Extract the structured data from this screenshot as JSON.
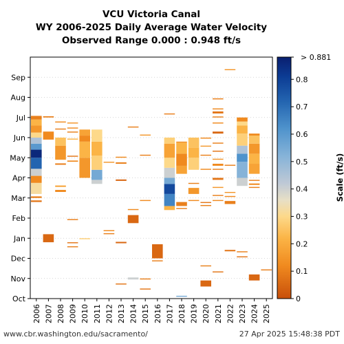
{
  "chart_data": {
    "type": "heatmap",
    "title_lines": [
      "VCU Victoria Canal",
      "WY 2006-2025 Daily Average Water Velocity",
      "Observed Range 0.000 : 0.948 ft/s"
    ],
    "x_categories": [
      "2006",
      "2007",
      "2008",
      "2009",
      "2010",
      "2011",
      "2012",
      "2013",
      "2014",
      "2015",
      "2016",
      "2017",
      "2018",
      "2019",
      "2020",
      "2021",
      "2022",
      "2023",
      "2024",
      "2025"
    ],
    "y_month_labels": [
      "Oct",
      "Nov",
      "Dec",
      "Jan",
      "Feb",
      "Mar",
      "Apr",
      "May",
      "Jun",
      "Jul",
      "Aug",
      "Sep"
    ],
    "y_range_months": [
      0,
      12
    ],
    "grid": true,
    "colorbar": {
      "label": "Scale (ft/s)",
      "min": 0,
      "max": 0.881,
      "top_label": "> 0.881",
      "ticks": [
        0,
        0.1,
        0.2,
        0.3,
        0.4,
        0.5,
        0.6,
        0.7,
        0.8
      ],
      "tick_labels": [
        "0",
        "0.1",
        "0.2",
        "0.3",
        "0.4",
        "0.5",
        "0.6",
        "0.7",
        "0.8"
      ],
      "stops": [
        {
          "v": 0.0,
          "c": "#c84f0a"
        },
        {
          "v": 0.12,
          "c": "#f08a1f"
        },
        {
          "v": 0.22,
          "c": "#fbb446"
        },
        {
          "v": 0.3,
          "c": "#fdd98a"
        },
        {
          "v": 0.36,
          "c": "#e7dfc6"
        },
        {
          "v": 0.42,
          "c": "#bfc9d6"
        },
        {
          "v": 0.52,
          "c": "#86b3d8"
        },
        {
          "v": 0.62,
          "c": "#4f93cc"
        },
        {
          "v": 0.72,
          "c": "#2364b0"
        },
        {
          "v": 0.81,
          "c": "#0c3c94"
        },
        {
          "v": 0.881,
          "c": "#0a1f70"
        }
      ]
    },
    "segments": [
      {
        "year": "2006",
        "start": 5.2,
        "end": 5.75,
        "v": 0.32
      },
      {
        "year": "2006",
        "start": 5.75,
        "end": 6.1,
        "v": 0.12
      },
      {
        "year": "2006",
        "start": 6.1,
        "end": 6.45,
        "v": 0.4
      },
      {
        "year": "2006",
        "start": 6.45,
        "end": 7.0,
        "v": 0.72
      },
      {
        "year": "2006",
        "start": 7.0,
        "end": 7.4,
        "v": 0.86
      },
      {
        "year": "2006",
        "start": 7.4,
        "end": 7.7,
        "v": 0.6
      },
      {
        "year": "2006",
        "start": 7.7,
        "end": 8.0,
        "v": 0.45
      },
      {
        "year": "2006",
        "start": 8.0,
        "end": 8.25,
        "v": 0.3
      },
      {
        "year": "2006",
        "start": 8.25,
        "end": 8.6,
        "v": 0.15
      },
      {
        "year": "2006",
        "start": 8.6,
        "end": 8.9,
        "v": 0.22
      },
      {
        "year": "2006",
        "start": 8.9,
        "end": 9.08,
        "v": 0.1
      },
      {
        "year": "2006",
        "start": 4.8,
        "end": 4.88,
        "v": 0.08
      },
      {
        "year": "2006",
        "start": 5.0,
        "end": 5.08,
        "v": 0.1
      },
      {
        "year": "2007",
        "start": 2.8,
        "end": 3.2,
        "v": 0.05
      },
      {
        "year": "2007",
        "start": 7.9,
        "end": 8.3,
        "v": 0.12
      },
      {
        "year": "2007",
        "start": 9.0,
        "end": 9.06,
        "v": 0.1
      },
      {
        "year": "2008",
        "start": 5.3,
        "end": 5.4,
        "v": 0.12
      },
      {
        "year": "2008",
        "start": 5.55,
        "end": 5.62,
        "v": 0.18
      },
      {
        "year": "2008",
        "start": 6.65,
        "end": 6.72,
        "v": 0.1
      },
      {
        "year": "2008",
        "start": 6.9,
        "end": 7.6,
        "v": 0.15
      },
      {
        "year": "2008",
        "start": 7.6,
        "end": 8.0,
        "v": 0.25
      },
      {
        "year": "2008",
        "start": 8.4,
        "end": 8.45,
        "v": 0.1
      },
      {
        "year": "2008",
        "start": 8.75,
        "end": 8.8,
        "v": 0.12
      },
      {
        "year": "2009",
        "start": 2.55,
        "end": 2.6,
        "v": 0.1
      },
      {
        "year": "2009",
        "start": 2.75,
        "end": 2.8,
        "v": 0.08
      },
      {
        "year": "2009",
        "start": 3.9,
        "end": 3.95,
        "v": 0.1
      },
      {
        "year": "2009",
        "start": 6.8,
        "end": 6.86,
        "v": 0.12
      },
      {
        "year": "2009",
        "start": 7.05,
        "end": 7.1,
        "v": 0.08
      },
      {
        "year": "2009",
        "start": 7.9,
        "end": 7.95,
        "v": 0.22
      },
      {
        "year": "2009",
        "start": 8.25,
        "end": 8.3,
        "v": 0.1
      },
      {
        "year": "2009",
        "start": 8.45,
        "end": 8.5,
        "v": 0.12
      },
      {
        "year": "2009",
        "start": 8.7,
        "end": 8.75,
        "v": 0.15
      },
      {
        "year": "2010",
        "start": 2.95,
        "end": 3.0,
        "v": 0.28
      },
      {
        "year": "2010",
        "start": 6.0,
        "end": 7.0,
        "v": 0.15
      },
      {
        "year": "2010",
        "start": 7.0,
        "end": 7.8,
        "v": 0.22
      },
      {
        "year": "2010",
        "start": 7.8,
        "end": 8.1,
        "v": 0.12
      },
      {
        "year": "2010",
        "start": 8.1,
        "end": 8.4,
        "v": 0.18
      },
      {
        "year": "2011",
        "start": 5.7,
        "end": 5.9,
        "v": 0.4
      },
      {
        "year": "2011",
        "start": 5.9,
        "end": 6.4,
        "v": 0.55
      },
      {
        "year": "2011",
        "start": 6.4,
        "end": 7.1,
        "v": 0.28
      },
      {
        "year": "2011",
        "start": 7.1,
        "end": 7.8,
        "v": 0.22
      },
      {
        "year": "2011",
        "start": 7.8,
        "end": 8.4,
        "v": 0.3
      },
      {
        "year": "2012",
        "start": 3.2,
        "end": 3.25,
        "v": 0.1
      },
      {
        "year": "2012",
        "start": 3.35,
        "end": 3.4,
        "v": 0.12
      },
      {
        "year": "2012",
        "start": 6.75,
        "end": 6.8,
        "v": 0.15
      },
      {
        "year": "2013",
        "start": 0.7,
        "end": 0.75,
        "v": 0.08
      },
      {
        "year": "2013",
        "start": 2.75,
        "end": 2.82,
        "v": 0.05
      },
      {
        "year": "2013",
        "start": 5.85,
        "end": 5.92,
        "v": 0.05
      },
      {
        "year": "2013",
        "start": 6.7,
        "end": 6.77,
        "v": 0.1
      },
      {
        "year": "2013",
        "start": 7.0,
        "end": 7.05,
        "v": 0.12
      },
      {
        "year": "2014",
        "start": 0.95,
        "end": 1.05,
        "v": 0.4
      },
      {
        "year": "2014",
        "start": 3.75,
        "end": 4.15,
        "v": 0.05
      },
      {
        "year": "2014",
        "start": 4.4,
        "end": 4.45,
        "v": 0.12
      },
      {
        "year": "2014",
        "start": 8.5,
        "end": 8.55,
        "v": 0.1
      },
      {
        "year": "2015",
        "start": 0.45,
        "end": 0.5,
        "v": 0.08
      },
      {
        "year": "2015",
        "start": 0.95,
        "end": 1.0,
        "v": 0.1
      },
      {
        "year": "2015",
        "start": 4.85,
        "end": 4.9,
        "v": 0.12
      },
      {
        "year": "2015",
        "start": 7.1,
        "end": 7.15,
        "v": 0.1
      },
      {
        "year": "2015",
        "start": 8.1,
        "end": 8.15,
        "v": 0.15
      },
      {
        "year": "2016",
        "start": 1.85,
        "end": 1.9,
        "v": 0.1
      },
      {
        "year": "2016",
        "start": 2.0,
        "end": 2.7,
        "v": 0.05
      },
      {
        "year": "2017",
        "start": 4.4,
        "end": 4.6,
        "v": 0.22
      },
      {
        "year": "2017",
        "start": 4.6,
        "end": 5.2,
        "v": 0.65
      },
      {
        "year": "2017",
        "start": 5.2,
        "end": 5.7,
        "v": 0.78
      },
      {
        "year": "2017",
        "start": 5.7,
        "end": 6.0,
        "v": 0.55
      },
      {
        "year": "2017",
        "start": 6.0,
        "end": 6.5,
        "v": 0.4
      },
      {
        "year": "2017",
        "start": 6.5,
        "end": 7.0,
        "v": 0.3
      },
      {
        "year": "2017",
        "start": 7.0,
        "end": 7.7,
        "v": 0.18
      },
      {
        "year": "2017",
        "start": 7.7,
        "end": 8.0,
        "v": 0.28
      },
      {
        "year": "2017",
        "start": 9.15,
        "end": 9.2,
        "v": 0.1
      },
      {
        "year": "2018",
        "start": 0.1,
        "end": 0.14,
        "v": 0.55
      },
      {
        "year": "2018",
        "start": 4.45,
        "end": 4.5,
        "v": 0.1
      },
      {
        "year": "2018",
        "start": 4.6,
        "end": 4.8,
        "v": 0.1
      },
      {
        "year": "2018",
        "start": 6.2,
        "end": 6.6,
        "v": 0.18
      },
      {
        "year": "2018",
        "start": 6.6,
        "end": 7.2,
        "v": 0.12
      },
      {
        "year": "2018",
        "start": 7.2,
        "end": 7.75,
        "v": 0.22
      },
      {
        "year": "2018",
        "start": 7.75,
        "end": 7.8,
        "v": 0.12
      },
      {
        "year": "2019",
        "start": 4.85,
        "end": 4.9,
        "v": 0.12
      },
      {
        "year": "2019",
        "start": 5.2,
        "end": 5.5,
        "v": 0.15
      },
      {
        "year": "2019",
        "start": 5.7,
        "end": 5.75,
        "v": 0.1
      },
      {
        "year": "2019",
        "start": 6.4,
        "end": 7.0,
        "v": 0.28
      },
      {
        "year": "2019",
        "start": 7.0,
        "end": 7.5,
        "v": 0.22
      },
      {
        "year": "2019",
        "start": 7.5,
        "end": 8.0,
        "v": 0.25
      },
      {
        "year": "2020",
        "start": 0.6,
        "end": 0.9,
        "v": 0.05
      },
      {
        "year": "2020",
        "start": 1.6,
        "end": 1.65,
        "v": 0.1
      },
      {
        "year": "2020",
        "start": 4.6,
        "end": 4.65,
        "v": 0.1
      },
      {
        "year": "2020",
        "start": 4.75,
        "end": 4.8,
        "v": 0.08
      },
      {
        "year": "2020",
        "start": 6.4,
        "end": 6.45,
        "v": 0.12
      },
      {
        "year": "2020",
        "start": 7.1,
        "end": 7.15,
        "v": 0.1
      },
      {
        "year": "2020",
        "start": 7.55,
        "end": 7.6,
        "v": 0.15
      },
      {
        "year": "2020",
        "start": 7.95,
        "end": 8.0,
        "v": 0.12
      },
      {
        "year": "2021",
        "start": 1.3,
        "end": 1.35,
        "v": 0.08
      },
      {
        "year": "2021",
        "start": 4.85,
        "end": 4.9,
        "v": 0.12
      },
      {
        "year": "2021",
        "start": 5.1,
        "end": 5.15,
        "v": 0.1
      },
      {
        "year": "2021",
        "start": 5.5,
        "end": 5.55,
        "v": 0.15
      },
      {
        "year": "2021",
        "start": 5.9,
        "end": 6.0,
        "v": 0.08
      },
      {
        "year": "2021",
        "start": 6.4,
        "end": 6.45,
        "v": 0.1
      },
      {
        "year": "2021",
        "start": 6.6,
        "end": 6.7,
        "v": 0.12
      },
      {
        "year": "2021",
        "start": 6.9,
        "end": 6.95,
        "v": 0.15
      },
      {
        "year": "2021",
        "start": 7.3,
        "end": 7.35,
        "v": 0.08
      },
      {
        "year": "2021",
        "start": 7.7,
        "end": 7.75,
        "v": 0.1
      },
      {
        "year": "2021",
        "start": 8.2,
        "end": 8.3,
        "v": 0.05
      },
      {
        "year": "2021",
        "start": 8.7,
        "end": 8.75,
        "v": 0.12
      },
      {
        "year": "2021",
        "start": 9.0,
        "end": 9.05,
        "v": 0.1
      },
      {
        "year": "2021",
        "start": 9.2,
        "end": 9.3,
        "v": 0.08
      },
      {
        "year": "2021",
        "start": 9.4,
        "end": 9.45,
        "v": 0.12
      },
      {
        "year": "2021",
        "start": 9.9,
        "end": 9.95,
        "v": 0.1
      },
      {
        "year": "2022",
        "start": 2.35,
        "end": 2.42,
        "v": 0.08
      },
      {
        "year": "2022",
        "start": 4.7,
        "end": 4.85,
        "v": 0.1
      },
      {
        "year": "2022",
        "start": 5.05,
        "end": 5.1,
        "v": 0.12
      },
      {
        "year": "2022",
        "start": 5.25,
        "end": 5.3,
        "v": 0.15
      },
      {
        "year": "2022",
        "start": 6.6,
        "end": 6.65,
        "v": 0.1
      },
      {
        "year": "2022",
        "start": 11.35,
        "end": 11.4,
        "v": 0.15
      },
      {
        "year": "2023",
        "start": 2.05,
        "end": 2.1,
        "v": 0.08
      },
      {
        "year": "2023",
        "start": 2.3,
        "end": 2.35,
        "v": 0.1
      },
      {
        "year": "2023",
        "start": 5.6,
        "end": 6.0,
        "v": 0.4
      },
      {
        "year": "2023",
        "start": 6.0,
        "end": 6.8,
        "v": 0.52
      },
      {
        "year": "2023",
        "start": 6.8,
        "end": 7.2,
        "v": 0.62
      },
      {
        "year": "2023",
        "start": 7.2,
        "end": 7.6,
        "v": 0.45
      },
      {
        "year": "2023",
        "start": 7.6,
        "end": 8.2,
        "v": 0.28
      },
      {
        "year": "2023",
        "start": 8.2,
        "end": 8.6,
        "v": 0.22
      },
      {
        "year": "2023",
        "start": 8.6,
        "end": 8.8,
        "v": 0.3
      },
      {
        "year": "2023",
        "start": 8.8,
        "end": 9.0,
        "v": 0.12
      },
      {
        "year": "2024",
        "start": 0.9,
        "end": 1.2,
        "v": 0.05
      },
      {
        "year": "2024",
        "start": 5.5,
        "end": 5.55,
        "v": 0.1
      },
      {
        "year": "2024",
        "start": 5.65,
        "end": 5.72,
        "v": 0.12
      },
      {
        "year": "2024",
        "start": 5.85,
        "end": 5.9,
        "v": 0.1
      },
      {
        "year": "2024",
        "start": 6.2,
        "end": 6.7,
        "v": 0.18
      },
      {
        "year": "2024",
        "start": 6.7,
        "end": 7.2,
        "v": 0.22
      },
      {
        "year": "2024",
        "start": 7.2,
        "end": 7.7,
        "v": 0.15
      },
      {
        "year": "2024",
        "start": 7.7,
        "end": 8.1,
        "v": 0.25
      },
      {
        "year": "2024",
        "start": 8.1,
        "end": 8.2,
        "v": 0.12
      },
      {
        "year": "2025",
        "start": 1.4,
        "end": 1.45,
        "v": 0.1
      }
    ]
  },
  "footer": {
    "left": "www.cbr.washington.edu/sacramento/",
    "right": "27 Apr 2025 15:48:38 PDT"
  }
}
